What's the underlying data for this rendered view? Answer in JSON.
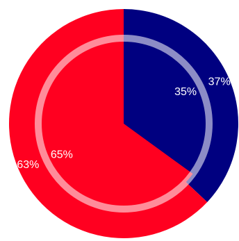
{
  "chart_data": {
    "type": "pie",
    "colors": [
      "#000080",
      "#ff0020"
    ],
    "series": [
      {
        "values": [
          37,
          63
        ],
        "value_labels": [
          "37%",
          "63%"
        ]
      },
      {
        "values": [
          35,
          65
        ],
        "value_labels": [
          "35%",
          "65%"
        ]
      }
    ]
  }
}
